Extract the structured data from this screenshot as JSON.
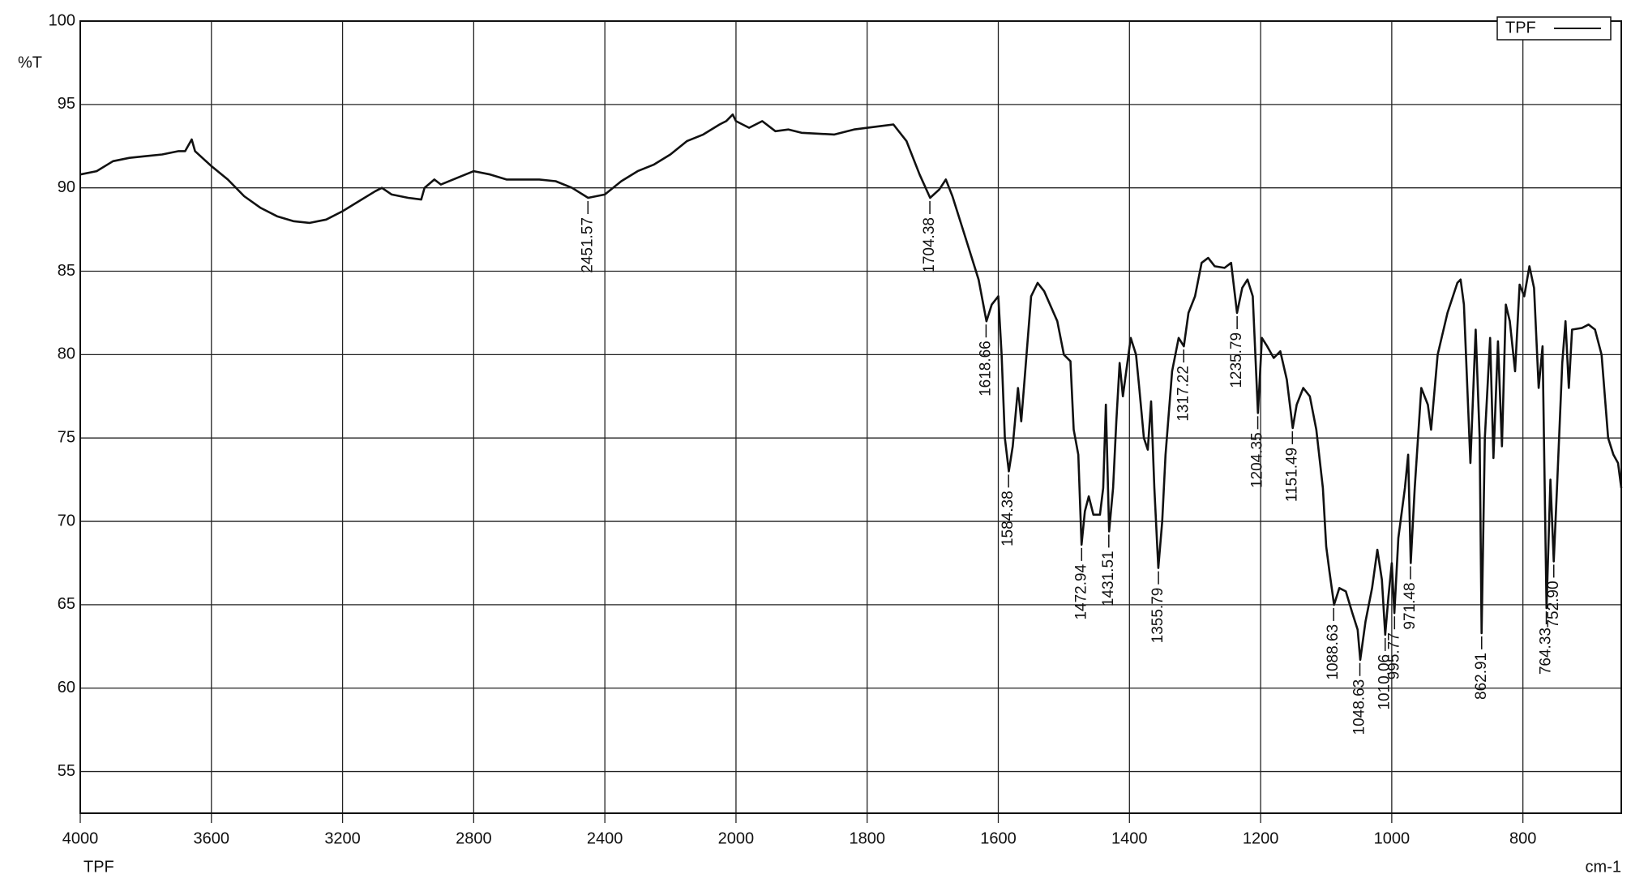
{
  "chart_data": {
    "type": "line",
    "ylabel": "%T",
    "xlabel": "cm-1",
    "sample_label": "TPF",
    "xlim": [
      4000,
      650
    ],
    "x_scale_change": 2000,
    "xticks": [
      4000,
      3600,
      3200,
      2800,
      2400,
      2000,
      1800,
      1600,
      1400,
      1200,
      1000,
      800
    ],
    "ylim": [
      52.5,
      100
    ],
    "yticks": [
      55,
      60,
      65,
      70,
      75,
      80,
      85,
      90,
      95,
      100
    ],
    "grid": true,
    "legend": "upper right",
    "x": [
      4000,
      3950,
      3900,
      3850,
      3800,
      3750,
      3700,
      3680,
      3660,
      3650,
      3600,
      3550,
      3500,
      3450,
      3400,
      3350,
      3300,
      3250,
      3200,
      3150,
      3100,
      3080,
      3050,
      3000,
      2960,
      2950,
      2920,
      2900,
      2850,
      2800,
      2750,
      2700,
      2650,
      2600,
      2550,
      2500,
      2451,
      2400,
      2350,
      2300,
      2250,
      2200,
      2150,
      2100,
      2050,
      2030,
      2010,
      2000,
      1980,
      1960,
      1940,
      1920,
      1900,
      1850,
      1820,
      1780,
      1760,
      1740,
      1720,
      1704,
      1690,
      1680,
      1670,
      1650,
      1630,
      1618,
      1610,
      1600,
      1595,
      1590,
      1584,
      1578,
      1570,
      1565,
      1560,
      1550,
      1540,
      1530,
      1510,
      1500,
      1490,
      1485,
      1478,
      1473,
      1468,
      1462,
      1455,
      1445,
      1440,
      1436,
      1431,
      1425,
      1420,
      1415,
      1410,
      1405,
      1398,
      1390,
      1385,
      1378,
      1372,
      1367,
      1362,
      1356,
      1350,
      1345,
      1335,
      1325,
      1317,
      1310,
      1300,
      1290,
      1280,
      1270,
      1255,
      1245,
      1236,
      1228,
      1220,
      1212,
      1208,
      1204,
      1198,
      1190,
      1180,
      1170,
      1160,
      1151,
      1145,
      1135,
      1125,
      1115,
      1105,
      1100,
      1095,
      1088,
      1080,
      1070,
      1060,
      1052,
      1048,
      1040,
      1030,
      1022,
      1015,
      1010,
      1005,
      1000,
      996,
      990,
      980,
      975,
      971,
      965,
      955,
      945,
      940,
      930,
      915,
      900,
      895,
      890,
      880,
      872,
      866,
      863,
      858,
      850,
      845,
      838,
      832,
      826,
      820,
      812,
      805,
      798,
      790,
      783,
      776,
      770,
      764,
      758,
      753,
      748,
      740,
      735,
      730,
      725,
      710,
      700,
      690,
      680,
      670,
      662,
      655,
      650
    ],
    "series": [
      {
        "name": "TPF",
        "color": "#111111",
        "values": [
          90.8,
          91.0,
          91.6,
          91.8,
          91.9,
          92.0,
          92.2,
          92.2,
          92.9,
          92.2,
          91.3,
          90.5,
          89.5,
          88.8,
          88.3,
          88.0,
          87.9,
          88.1,
          88.6,
          89.2,
          89.8,
          90.0,
          89.6,
          89.4,
          89.3,
          90.0,
          90.5,
          90.2,
          90.6,
          91.0,
          90.8,
          90.5,
          90.5,
          90.5,
          90.4,
          90.0,
          89.4,
          89.6,
          90.4,
          91.0,
          91.4,
          92.0,
          92.8,
          93.2,
          93.8,
          94.0,
          94.4,
          94.0,
          93.6,
          94.0,
          93.4,
          93.5,
          93.3,
          93.2,
          93.5,
          93.7,
          93.8,
          92.8,
          90.8,
          89.4,
          89.9,
          90.5,
          89.5,
          87.0,
          84.5,
          82.0,
          83.0,
          83.5,
          80.0,
          75.0,
          73.0,
          74.5,
          78.0,
          76.0,
          78.5,
          83.5,
          84.3,
          83.8,
          82.0,
          80.0,
          79.6,
          75.5,
          74.0,
          68.6,
          70.6,
          71.5,
          70.4,
          70.4,
          72.0,
          77.0,
          69.4,
          72.0,
          76.0,
          79.5,
          77.5,
          79.0,
          81.0,
          80.0,
          78.0,
          75.0,
          74.3,
          77.2,
          72.0,
          67.2,
          70.0,
          74.0,
          79.0,
          81.0,
          80.5,
          82.5,
          83.5,
          85.5,
          85.8,
          85.3,
          85.2,
          85.5,
          82.5,
          84.0,
          84.5,
          83.5,
          80.0,
          76.5,
          81.0,
          80.5,
          79.8,
          80.2,
          78.5,
          75.6,
          77.0,
          78.0,
          77.5,
          75.5,
          72.0,
          68.5,
          67.0,
          65.0,
          66.0,
          65.8,
          64.5,
          63.5,
          61.7,
          64.0,
          66.0,
          68.3,
          66.5,
          63.2,
          65.5,
          67.5,
          64.5,
          69.0,
          72.0,
          74.0,
          67.5,
          72.0,
          78.0,
          77.0,
          75.5,
          80.0,
          82.5,
          84.3,
          84.5,
          83.0,
          73.5,
          81.5,
          75.0,
          63.3,
          75.0,
          81.0,
          73.8,
          80.8,
          74.5,
          83.0,
          82.0,
          79.0,
          84.2,
          83.5,
          85.3,
          84.0,
          78.0,
          80.5,
          64.8,
          72.5,
          67.6,
          72.0,
          79.5,
          82.0,
          78.0,
          81.5,
          81.6,
          81.8,
          81.5,
          80.0,
          75.0,
          74.0,
          73.5,
          72.0
        ]
      }
    ],
    "peaks": {
      "x": [
        2451.57,
        1704.38,
        1618.66,
        1584.38,
        1472.94,
        1431.51,
        1355.79,
        1317.22,
        1235.79,
        1204.35,
        1151.49,
        1088.63,
        1048.63,
        1010.06,
        995.77,
        971.48,
        862.91,
        764.33,
        752.9
      ],
      "y": [
        89.4,
        89.4,
        82.0,
        73.0,
        68.6,
        69.4,
        67.2,
        80.5,
        82.5,
        76.5,
        75.6,
        65.0,
        61.7,
        63.2,
        64.5,
        67.5,
        63.3,
        64.8,
        67.6
      ],
      "value_labels": [
        "2451.57",
        "1704.38",
        "1618.66",
        "1584.38",
        "1472.94",
        "1431.51",
        "1355.79",
        "1317.22",
        "1235.79",
        "1204.35",
        "1151.49",
        "1088.63",
        "1048.63",
        "1010.06",
        "995.77",
        "971.48",
        "862.91",
        "764.33",
        "752.90"
      ]
    }
  }
}
